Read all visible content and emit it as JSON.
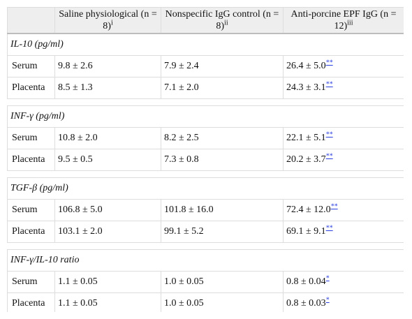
{
  "table": {
    "headers": [
      {
        "text": "",
        "sup": ""
      },
      {
        "text": "Saline physiological (n = 8)",
        "sup": "i"
      },
      {
        "text": "Nonspecific IgG control (n = 8)",
        "sup": "ii"
      },
      {
        "text": "Anti-porcine EPF IgG (n = 12)",
        "sup": "iii"
      }
    ],
    "sections": [
      {
        "title": "IL-10 (pg/ml)",
        "rows": [
          {
            "label": "Serum",
            "c1": "9.8 ± 2.6",
            "c2": "7.9 ± 2.4",
            "c3": "26.4 ± 5.0",
            "ref": "**"
          },
          {
            "label": "Placenta",
            "c1": "8.5 ± 1.3",
            "c2": "7.1 ± 2.0",
            "c3": "24.3 ± 3.1",
            "ref": "**"
          }
        ]
      },
      {
        "title": "INF-γ (pg/ml)",
        "rows": [
          {
            "label": "Serum",
            "c1": "10.8 ± 2.0",
            "c2": "8.2 ± 2.5",
            "c3": "22.1 ± 5.1",
            "ref": "**"
          },
          {
            "label": "Placenta",
            "c1": "9.5 ± 0.5",
            "c2": "7.3 ± 0.8",
            "c3": "20.2 ± 3.7",
            "ref": "**"
          }
        ]
      },
      {
        "title": "TGF-β (pg/ml)",
        "rows": [
          {
            "label": "Serum",
            "c1": "106.8 ± 5.0",
            "c2": "101.8 ± 16.0",
            "c3": "72.4 ± 12.0",
            "ref": "**"
          },
          {
            "label": "Placenta",
            "c1": "103.1 ± 2.0",
            "c2": "99.1 ± 5.2",
            "c3": "69.1 ± 9.1",
            "ref": "**"
          }
        ]
      },
      {
        "title": "INF-γ/IL-10 ratio",
        "rows": [
          {
            "label": "Serum",
            "c1": "1.1 ± 0.05",
            "c2": "1.0 ± 0.05",
            "c3": "0.8 ± 0.04",
            "ref": "*"
          },
          {
            "label": "Placenta",
            "c1": "1.1 ± 0.05",
            "c2": "1.0 ± 0.05",
            "c3": "0.8 ± 0.03",
            "ref": "*"
          }
        ]
      }
    ]
  }
}
